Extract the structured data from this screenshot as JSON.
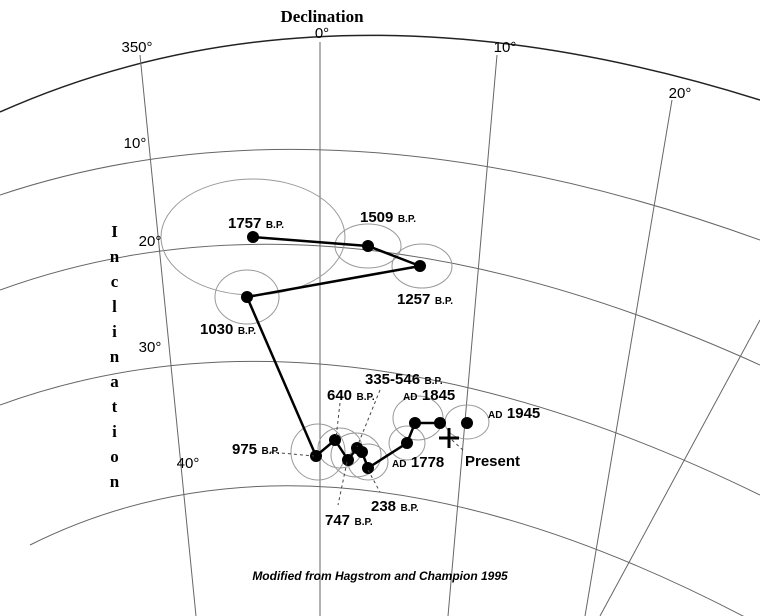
{
  "title": "Declination",
  "axis_label": "Inclination",
  "declination_labels": [
    "350°",
    "0°",
    "10°",
    "20°"
  ],
  "inclination_labels": [
    "10°",
    "20°",
    "30°",
    "40°"
  ],
  "points": [
    {
      "number": "1757",
      "era": "B.P."
    },
    {
      "number": "1509",
      "era": "B.P."
    },
    {
      "number": "1257",
      "era": "B.P."
    },
    {
      "number": "1030",
      "era": "B.P."
    },
    {
      "number": "335-546",
      "era": "B.P."
    },
    {
      "number": "640",
      "era": "B.P."
    },
    {
      "era": "AD",
      "number": "1845"
    },
    {
      "era": "AD",
      "number": "1945"
    },
    {
      "number": "975",
      "era": "B.P."
    },
    {
      "era": "AD",
      "number": "1778"
    },
    {
      "number": "747",
      "era": "B.P."
    },
    {
      "number": "238",
      "era": "B.P."
    }
  ],
  "present": "Present",
  "credit": "Modified from Hagstrom and Champion 1995"
}
